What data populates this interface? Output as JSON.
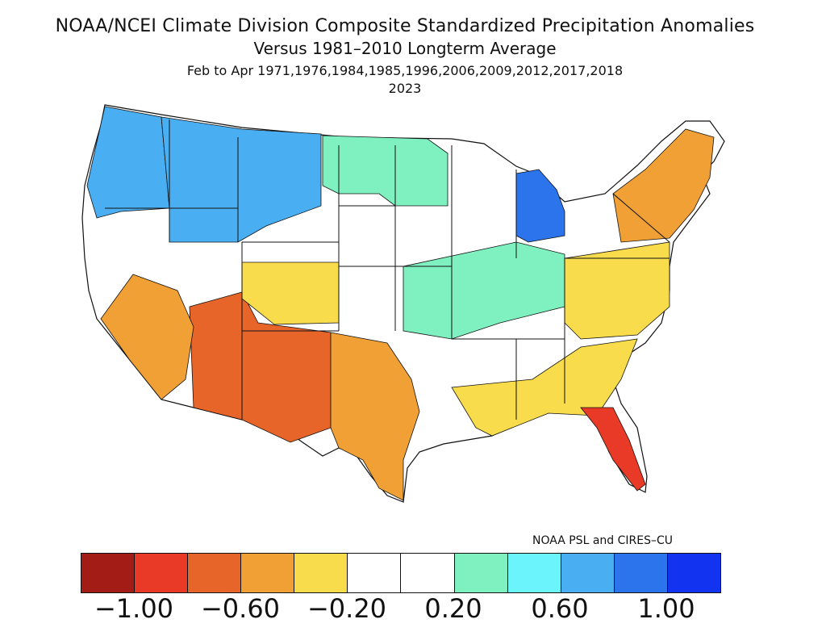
{
  "title": {
    "line1": "NOAA/NCEI Climate Division Composite Standardized Precipitation Anomalies",
    "line2": "Versus 1981–2010 Longterm Average",
    "line3": "Feb to Apr  1971,1976,1984,1985,1996,2006,2009,2012,2017,2018",
    "line4": "2023"
  },
  "credit": "NOAA PSL and CIRES–CU",
  "legend": {
    "colors": [
      "#a31d16",
      "#e83a26",
      "#e8652a",
      "#f0a034",
      "#f8dc4c",
      "#ffffff",
      "#ffffff",
      "#7ff0c0",
      "#6cf4fc",
      "#4aaff2",
      "#2b74ec",
      "#1233f0"
    ],
    "tick_labels": [
      "−1.00",
      "−0.60",
      "−0.20",
      "0.20",
      "0.60",
      "1.00"
    ]
  },
  "map": {
    "regions": [
      {
        "name": "pacific-northwest",
        "color": "#4aaff2",
        "value": 0.6
      },
      {
        "name": "northern-rockies",
        "color": "#4aaff2",
        "value": 0.7
      },
      {
        "name": "northern-plains",
        "color": "#7ff0c0",
        "value": 0.3
      },
      {
        "name": "upper-michigan",
        "color": "#2b74ec",
        "value": 0.9
      },
      {
        "name": "desert-southwest",
        "color": "#e8652a",
        "value": -0.7
      },
      {
        "name": "southern-california",
        "color": "#f0a034",
        "value": -0.5
      },
      {
        "name": "central-rockies",
        "color": "#f8dc4c",
        "value": -0.3
      },
      {
        "name": "texas",
        "color": "#f0a034",
        "value": -0.4
      },
      {
        "name": "ohio-valley",
        "color": "#7ff0c0",
        "value": 0.3
      },
      {
        "name": "mid-atlantic",
        "color": "#f8dc4c",
        "value": -0.3
      },
      {
        "name": "northeast",
        "color": "#f0a034",
        "value": -0.4
      },
      {
        "name": "southeast",
        "color": "#f8dc4c",
        "value": -0.3
      },
      {
        "name": "florida",
        "color": "#e83a26",
        "value": -0.8
      }
    ]
  }
}
